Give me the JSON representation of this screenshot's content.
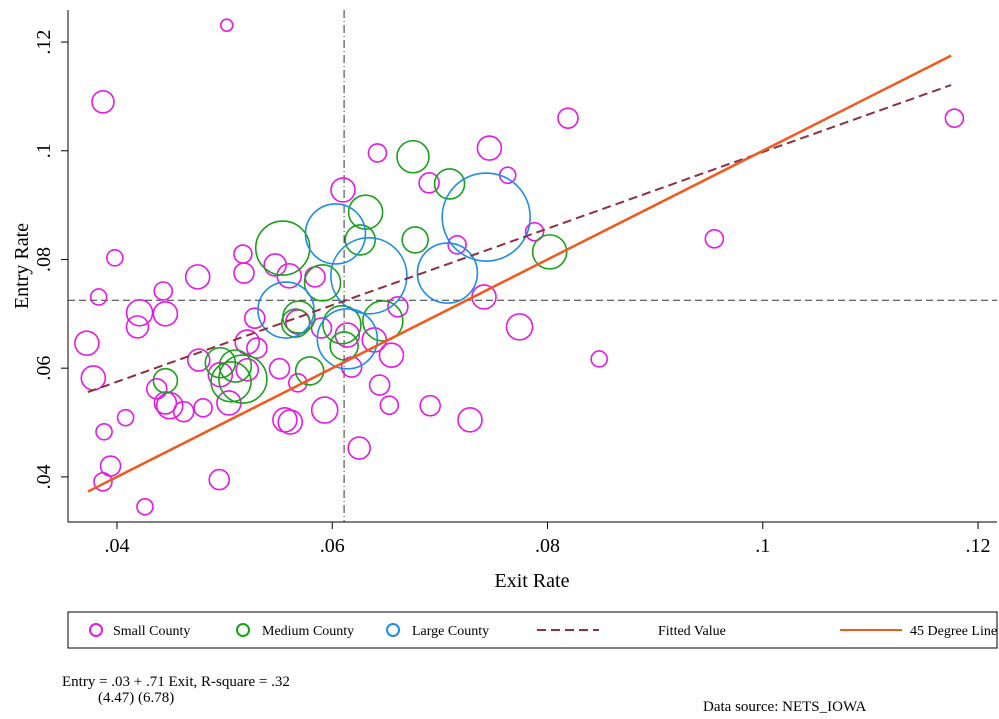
{
  "chart_data": {
    "type": "scatter",
    "xlabel": "Exit Rate",
    "ylabel": "Entry Rate",
    "xlim": [
      0.03545,
      0.12176
    ],
    "ylim": [
      0.0317,
      0.1259
    ],
    "xticks": [
      {
        "value": 0.04,
        "label": ".04"
      },
      {
        "value": 0.06,
        "label": ".06"
      },
      {
        "value": 0.08,
        "label": ".08"
      },
      {
        "value": 0.1,
        "label": ".1"
      },
      {
        "value": 0.12,
        "label": ".12"
      }
    ],
    "yticks": [
      {
        "value": 0.04,
        "label": ".04"
      },
      {
        "value": 0.06,
        "label": ".06"
      },
      {
        "value": 0.08,
        "label": ".08"
      },
      {
        "value": 0.1,
        "label": ".1"
      },
      {
        "value": 0.12,
        "label": ".12"
      }
    ],
    "xline": 0.0611,
    "yline": 0.0725,
    "legend_position": "bottom",
    "series": [
      {
        "name": "Small County",
        "style": "hollow-circle",
        "color": "#e619e6",
        "x": [
          0.0502,
          0.0387,
          0.0819,
          0.1178,
          0.0642,
          0.0746,
          0.0763,
          0.069,
          0.061,
          0.0788,
          0.0716,
          0.0955,
          0.0398,
          0.0517,
          0.0475,
          0.0518,
          0.0547,
          0.056,
          0.0584,
          0.0443,
          0.0383,
          0.0421,
          0.0445,
          0.0419,
          0.0741,
          0.0661,
          0.0528,
          0.0774,
          0.0372,
          0.0568,
          0.059,
          0.0614,
          0.0639,
          0.0655,
          0.0521,
          0.053,
          0.0378,
          0.0476,
          0.0496,
          0.0521,
          0.0551,
          0.0848,
          0.0437,
          0.0445,
          0.0449,
          0.0462,
          0.048,
          0.0504,
          0.0568,
          0.0618,
          0.0644,
          0.0653,
          0.0593,
          0.0691,
          0.0728,
          0.0556,
          0.0561,
          0.0408,
          0.0388,
          0.0394,
          0.0387,
          0.0495,
          0.0426,
          0.0625
        ],
        "values": [
          0.1231,
          0.109,
          0.106,
          0.106,
          0.0996,
          0.1005,
          0.0955,
          0.0941,
          0.0928,
          0.0851,
          0.0827,
          0.0838,
          0.0803,
          0.081,
          0.0768,
          0.0775,
          0.079,
          0.077,
          0.0768,
          0.0742,
          0.0731,
          0.0702,
          0.07,
          0.0676,
          0.0731,
          0.0713,
          0.0692,
          0.0676,
          0.0646,
          0.0685,
          0.0674,
          0.0661,
          0.0652,
          0.0624,
          0.0648,
          0.0637,
          0.0582,
          0.0615,
          0.0588,
          0.0597,
          0.0599,
          0.0617,
          0.0562,
          0.0536,
          0.0531,
          0.052,
          0.0527,
          0.0536,
          0.0573,
          0.0602,
          0.0569,
          0.0532,
          0.0523,
          0.0531,
          0.0505,
          0.0505,
          0.0501,
          0.0509,
          0.0483,
          0.042,
          0.0391,
          0.0395,
          0.0345,
          0.0453
        ],
        "sizes": [
          0.36,
          1.21,
          1.0,
          0.81,
          0.81,
          1.44,
          0.64,
          1.0,
          1.44,
          0.81,
          0.81,
          0.81,
          0.64,
          0.81,
          1.44,
          1.0,
          1.21,
          1.44,
          1.0,
          0.81,
          0.64,
          1.69,
          1.44,
          1.21,
          1.44,
          1.0,
          1.0,
          1.69,
          1.44,
          1.44,
          1.0,
          1.44,
          1.44,
          1.44,
          1.44,
          1.0,
          1.44,
          1.21,
          1.44,
          1.21,
          1.0,
          0.64,
          1.0,
          1.21,
          1.69,
          1.0,
          0.81,
          1.44,
          0.81,
          1.0,
          1.0,
          0.81,
          1.69,
          1.0,
          1.44,
          1.44,
          1.44,
          0.64,
          0.64,
          1.0,
          0.81,
          1.0,
          0.64,
          1.21
        ]
      },
      {
        "name": "Medium County",
        "style": "hollow-circle",
        "color": "#1aa01a",
        "x": [
          0.0675,
          0.0709,
          0.0631,
          0.0626,
          0.0554,
          0.0677,
          0.0802,
          0.0591,
          0.0569,
          0.0566,
          0.0609,
          0.0647,
          0.0445,
          0.0496,
          0.051,
          0.0506,
          0.0517,
          0.0579,
          0.0611
        ],
        "values": [
          0.0989,
          0.0939,
          0.0887,
          0.0836,
          0.0821,
          0.0836,
          0.0814,
          0.0757,
          0.0694,
          0.0683,
          0.068,
          0.0687,
          0.0577,
          0.061,
          0.0604,
          0.0575,
          0.058,
          0.0595,
          0.0641
        ],
        "sizes": [
          2.56,
          2.25,
          2.89,
          2.25,
          7.29,
          1.69,
          2.89,
          3.24,
          2.56,
          1.96,
          3.61,
          4.0,
          1.44,
          2.25,
          2.56,
          4.0,
          5.76,
          1.96,
          1.96
        ]
      },
      {
        "name": "Large County",
        "style": "hollow-circle",
        "color": "#1e8ce6",
        "x": [
          0.0603,
          0.0557,
          0.0634,
          0.0707,
          0.0614,
          0.0743
        ],
        "values": [
          0.0847,
          0.0707,
          0.077,
          0.0775,
          0.0654,
          0.0878
        ],
        "sizes": [
          9.0,
          7.84,
          14.44,
          9.0,
          9.0,
          19.36
        ]
      },
      {
        "name": "Fitted Value",
        "style": "dashed",
        "color": "#8e3040",
        "x": [
          0.0373,
          0.1175
        ],
        "values": [
          0.0556,
          0.1121
        ]
      },
      {
        "name": "45 Degree Line",
        "style": "solid",
        "color": "#f05a1e",
        "x": [
          0.0373,
          0.1175
        ],
        "values": [
          0.0373,
          0.1175
        ]
      }
    ],
    "note": "Entry = .03 + .71 Exit, R-square = .32",
    "note_stats": "(4.47) (6.78)",
    "source": "Data source: NETS_IOWA"
  }
}
